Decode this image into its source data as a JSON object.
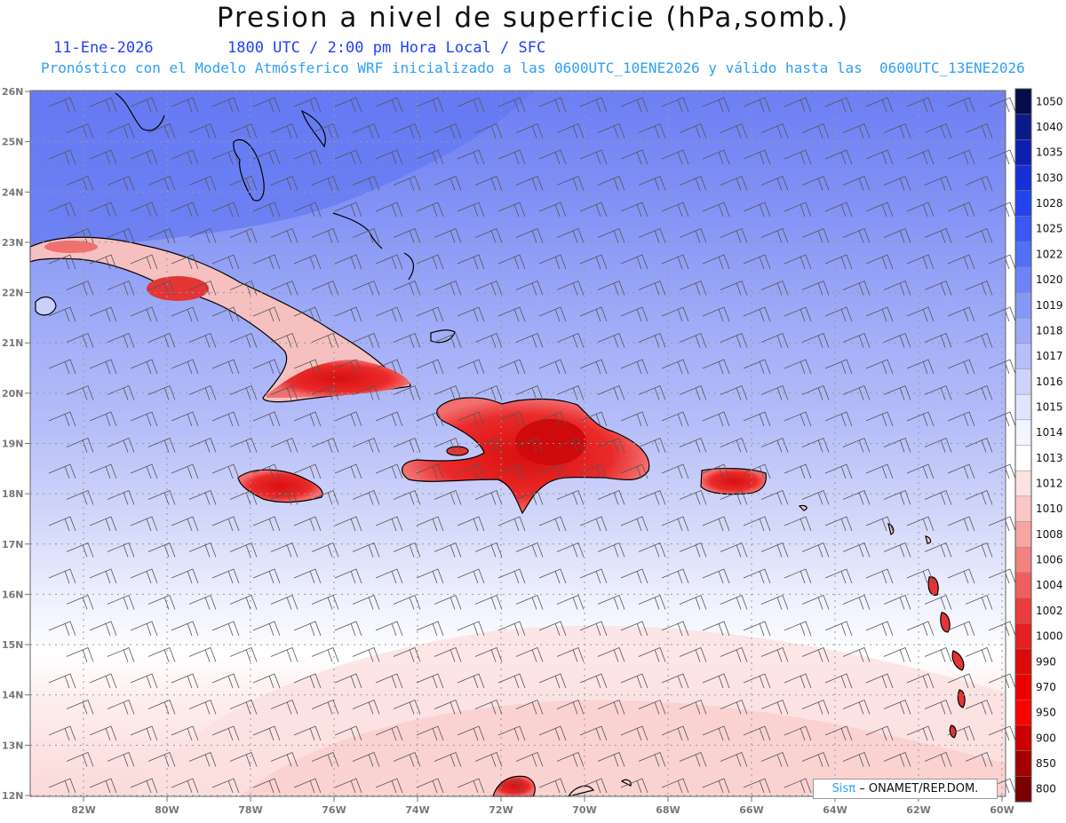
{
  "header": {
    "title": "Presion a nivel de superficie (hPa,somb.)",
    "date": "11-Ene-2026",
    "time_line": "1800 UTC / 2:00 pm Hora Local / SFC",
    "model_line": "Pronóstico con el Modelo Atmósferico WRF inicializado a las 0600UTC_10ENE2026 y válido hasta las  0600UTC_13ENE2026"
  },
  "map": {
    "lat_labels": [
      "26N",
      "25N",
      "24N",
      "23N",
      "22N",
      "21N",
      "20N",
      "19N",
      "18N",
      "17N",
      "16N",
      "15N",
      "14N",
      "13N",
      "12N"
    ],
    "lon_labels": [
      "82W",
      "80W",
      "78W",
      "76W",
      "74W",
      "72W",
      "70W",
      "68W",
      "66W",
      "64W",
      "62W",
      "60W"
    ],
    "islands": [
      "Cuba",
      "Jamaica",
      "Hispaniola",
      "Puerto Rico",
      "Bahamas",
      "Lesser Antilles"
    ]
  },
  "colorbar": {
    "levels": [
      "1050",
      "1040",
      "1035",
      "1030",
      "1028",
      "1025",
      "1022",
      "1020",
      "1019",
      "1018",
      "1017",
      "1016",
      "1015",
      "1014",
      "1013",
      "1012",
      "1010",
      "1008",
      "1006",
      "1004",
      "1002",
      "1000",
      "990",
      "970",
      "950",
      "900",
      "850",
      "800"
    ],
    "colors": [
      "#070b4a",
      "#0a1a8a",
      "#0d1fb0",
      "#1530d8",
      "#2244ee",
      "#3a58f5",
      "#5070f5",
      "#6c84f5",
      "#8698f5",
      "#9faaf7",
      "#b7bff9",
      "#cdd3fb",
      "#e0e4fc",
      "#f2f4fe",
      "#ffffff",
      "#fde2e2",
      "#fbc6c6",
      "#f8a4a4",
      "#f48282",
      "#f05f5f",
      "#ec3c3c",
      "#e62020",
      "#dd0a0a",
      "#ee0000",
      "#ff0000",
      "#cc0000",
      "#a40000",
      "#7a0000"
    ]
  },
  "credit": {
    "brand": "Sisπ",
    "text": "– ONAMET/REP.DOM."
  }
}
